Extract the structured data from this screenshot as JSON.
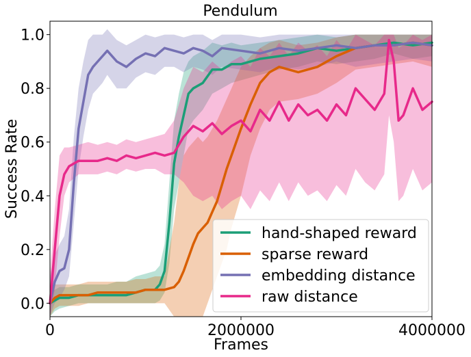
{
  "chart_data": {
    "type": "line",
    "title": "Pendulum",
    "xlabel": "Frames",
    "ylabel": "Success Rate",
    "xlim": [
      0,
      4000000
    ],
    "ylim": [
      -0.05,
      1.05
    ],
    "xticks": [
      0,
      2000000,
      4000000
    ],
    "xtick_labels": [
      "0",
      "2000000",
      "4000000"
    ],
    "yticks": [
      0.0,
      0.2,
      0.4,
      0.6,
      0.8,
      1.0
    ],
    "ytick_labels": [
      "0.0",
      "0.2",
      "0.4",
      "0.6",
      "0.8",
      "1.0"
    ],
    "grid": false,
    "legend_position": "lower-right",
    "series": [
      {
        "name": "hand-shaped reward",
        "color": "#1b9e77",
        "x": [
          0,
          50000,
          100000,
          200000,
          300000,
          400000,
          500000,
          600000,
          700000,
          800000,
          900000,
          1000000,
          1100000,
          1150000,
          1200000,
          1250000,
          1300000,
          1350000,
          1400000,
          1450000,
          1500000,
          1600000,
          1700000,
          1800000,
          1900000,
          2000000,
          2200000,
          2400000,
          2600000,
          2800000,
          3000000,
          3200000,
          3400000,
          3600000,
          3800000,
          4000000
        ],
        "y": [
          0.0,
          0.01,
          0.02,
          0.02,
          0.03,
          0.03,
          0.03,
          0.03,
          0.03,
          0.03,
          0.04,
          0.05,
          0.05,
          0.07,
          0.12,
          0.3,
          0.52,
          0.62,
          0.7,
          0.78,
          0.8,
          0.82,
          0.87,
          0.87,
          0.89,
          0.89,
          0.91,
          0.92,
          0.93,
          0.95,
          0.94,
          0.95,
          0.96,
          0.97,
          0.96,
          0.97
        ],
        "band_lower": [
          -0.05,
          -0.03,
          -0.02,
          -0.01,
          0.0,
          0.0,
          0.0,
          0.0,
          0.0,
          0.0,
          0.0,
          0.0,
          0.0,
          0.01,
          0.04,
          0.15,
          0.35,
          0.45,
          0.55,
          0.65,
          0.68,
          0.72,
          0.78,
          0.8,
          0.82,
          0.83,
          0.85,
          0.87,
          0.88,
          0.9,
          0.89,
          0.9,
          0.91,
          0.93,
          0.91,
          0.92
        ],
        "band_upper": [
          0.05,
          0.05,
          0.06,
          0.06,
          0.07,
          0.07,
          0.07,
          0.07,
          0.08,
          0.08,
          0.1,
          0.11,
          0.12,
          0.14,
          0.22,
          0.45,
          0.68,
          0.78,
          0.86,
          0.9,
          0.92,
          0.94,
          0.97,
          0.96,
          0.97,
          0.96,
          0.97,
          0.98,
          0.99,
          1.0,
          0.99,
          1.0,
          1.0,
          1.0,
          1.0,
          1.0
        ]
      },
      {
        "name": "sparse reward",
        "color": "#d95f02",
        "x": [
          0,
          50000,
          100000,
          200000,
          300000,
          400000,
          500000,
          600000,
          700000,
          800000,
          900000,
          1000000,
          1100000,
          1200000,
          1300000,
          1350000,
          1400000,
          1450000,
          1500000,
          1550000,
          1600000,
          1650000,
          1700000,
          1750000,
          1800000,
          1850000,
          1900000,
          2000000,
          2100000,
          2200000,
          2300000,
          2400000,
          2600000,
          2800000,
          3000000,
          3200000,
          3400000,
          3600000,
          3800000,
          4000000
        ],
        "y": [
          0.0,
          0.02,
          0.03,
          0.03,
          0.03,
          0.03,
          0.04,
          0.04,
          0.04,
          0.04,
          0.04,
          0.05,
          0.05,
          0.05,
          0.06,
          0.08,
          0.12,
          0.17,
          0.22,
          0.26,
          0.28,
          0.3,
          0.34,
          0.38,
          0.44,
          0.5,
          0.55,
          0.65,
          0.74,
          0.82,
          0.86,
          0.88,
          0.86,
          0.88,
          0.92,
          0.95,
          0.96,
          0.96,
          0.97,
          0.96
        ],
        "band_lower": [
          -0.05,
          -0.02,
          -0.01,
          -0.01,
          -0.01,
          0.0,
          0.0,
          0.0,
          0.0,
          0.0,
          0.0,
          0.0,
          0.0,
          0.0,
          -0.05,
          -0.05,
          -0.05,
          -0.05,
          -0.05,
          -0.05,
          -0.05,
          0.0,
          0.05,
          0.1,
          0.15,
          0.2,
          0.28,
          0.4,
          0.55,
          0.65,
          0.72,
          0.75,
          0.76,
          0.78,
          0.82,
          0.87,
          0.88,
          0.89,
          0.9,
          0.88
        ],
        "band_upper": [
          0.05,
          0.07,
          0.07,
          0.07,
          0.07,
          0.08,
          0.08,
          0.08,
          0.08,
          0.08,
          0.09,
          0.09,
          0.1,
          0.1,
          0.3,
          0.45,
          0.55,
          0.58,
          0.6,
          0.62,
          0.6,
          0.62,
          0.65,
          0.68,
          0.72,
          0.76,
          0.8,
          0.88,
          0.92,
          0.95,
          0.97,
          0.98,
          0.96,
          0.97,
          0.99,
          1.0,
          1.0,
          1.0,
          1.0,
          1.0
        ]
      },
      {
        "name": "embedding distance",
        "color": "#7570b3",
        "x": [
          0,
          50000,
          100000,
          150000,
          200000,
          250000,
          300000,
          350000,
          400000,
          450000,
          500000,
          550000,
          600000,
          700000,
          800000,
          900000,
          1000000,
          1100000,
          1200000,
          1300000,
          1400000,
          1500000,
          1600000,
          1700000,
          1800000,
          2000000,
          2200000,
          2400000,
          2600000,
          2800000,
          3000000,
          3200000,
          3400000,
          3600000,
          3800000,
          4000000
        ],
        "y": [
          0.0,
          0.08,
          0.12,
          0.13,
          0.2,
          0.45,
          0.65,
          0.75,
          0.85,
          0.88,
          0.9,
          0.92,
          0.94,
          0.9,
          0.88,
          0.91,
          0.93,
          0.92,
          0.95,
          0.94,
          0.93,
          0.95,
          0.94,
          0.92,
          0.95,
          0.94,
          0.93,
          0.95,
          0.94,
          0.95,
          0.96,
          0.95,
          0.96,
          0.96,
          0.97,
          0.96
        ],
        "band_lower": [
          -0.05,
          0.0,
          0.02,
          0.05,
          0.1,
          0.3,
          0.5,
          0.62,
          0.72,
          0.78,
          0.8,
          0.82,
          0.85,
          0.8,
          0.8,
          0.84,
          0.86,
          0.85,
          0.88,
          0.88,
          0.86,
          0.88,
          0.87,
          0.85,
          0.88,
          0.87,
          0.86,
          0.88,
          0.87,
          0.88,
          0.9,
          0.88,
          0.89,
          0.9,
          0.91,
          0.9
        ],
        "band_upper": [
          0.1,
          0.18,
          0.22,
          0.25,
          0.35,
          0.62,
          0.8,
          0.9,
          0.98,
          1.0,
          1.0,
          1.0,
          1.02,
          0.98,
          0.96,
          0.98,
          1.0,
          0.99,
          1.0,
          1.0,
          0.99,
          1.0,
          1.0,
          0.98,
          1.0,
          1.0,
          0.99,
          1.0,
          1.0,
          1.0,
          1.0,
          1.0,
          1.0,
          1.0,
          1.0,
          1.0
        ]
      },
      {
        "name": "raw distance",
        "color": "#e7298a",
        "x": [
          0,
          50000,
          100000,
          150000,
          200000,
          300000,
          400000,
          500000,
          600000,
          700000,
          800000,
          900000,
          1000000,
          1100000,
          1200000,
          1300000,
          1400000,
          1500000,
          1600000,
          1700000,
          1800000,
          1900000,
          2000000,
          2100000,
          2200000,
          2300000,
          2400000,
          2500000,
          2600000,
          2700000,
          2800000,
          2900000,
          3000000,
          3100000,
          3200000,
          3300000,
          3400000,
          3500000,
          3550000,
          3600000,
          3650000,
          3700000,
          3800000,
          3900000,
          4000000
        ],
        "y": [
          0.0,
          0.2,
          0.4,
          0.48,
          0.51,
          0.53,
          0.53,
          0.53,
          0.54,
          0.53,
          0.55,
          0.54,
          0.55,
          0.56,
          0.55,
          0.56,
          0.62,
          0.66,
          0.64,
          0.67,
          0.63,
          0.66,
          0.68,
          0.64,
          0.72,
          0.68,
          0.75,
          0.68,
          0.74,
          0.7,
          0.72,
          0.68,
          0.74,
          0.7,
          0.8,
          0.76,
          0.72,
          0.78,
          0.98,
          0.9,
          0.68,
          0.7,
          0.8,
          0.72,
          0.75
        ],
        "band_lower": [
          -0.05,
          0.05,
          0.25,
          0.4,
          0.45,
          0.48,
          0.48,
          0.48,
          0.49,
          0.48,
          0.5,
          0.49,
          0.5,
          0.5,
          0.48,
          0.48,
          0.45,
          0.4,
          0.38,
          0.4,
          0.35,
          0.38,
          0.4,
          0.35,
          0.42,
          0.38,
          0.45,
          0.38,
          0.45,
          0.4,
          0.42,
          0.38,
          0.44,
          0.4,
          0.5,
          0.45,
          0.42,
          0.48,
          0.7,
          0.6,
          0.38,
          0.4,
          0.5,
          0.42,
          0.45
        ],
        "band_upper": [
          0.1,
          0.35,
          0.55,
          0.58,
          0.58,
          0.59,
          0.6,
          0.59,
          0.6,
          0.59,
          0.61,
          0.6,
          0.61,
          0.62,
          0.63,
          0.68,
          0.8,
          0.88,
          0.86,
          0.9,
          0.87,
          0.9,
          0.92,
          0.88,
          0.95,
          0.92,
          0.97,
          0.92,
          0.97,
          0.94,
          0.96,
          0.92,
          0.98,
          0.94,
          1.0,
          0.98,
          0.96,
          1.0,
          1.0,
          1.0,
          0.95,
          0.96,
          1.0,
          0.98,
          1.0
        ]
      }
    ]
  }
}
